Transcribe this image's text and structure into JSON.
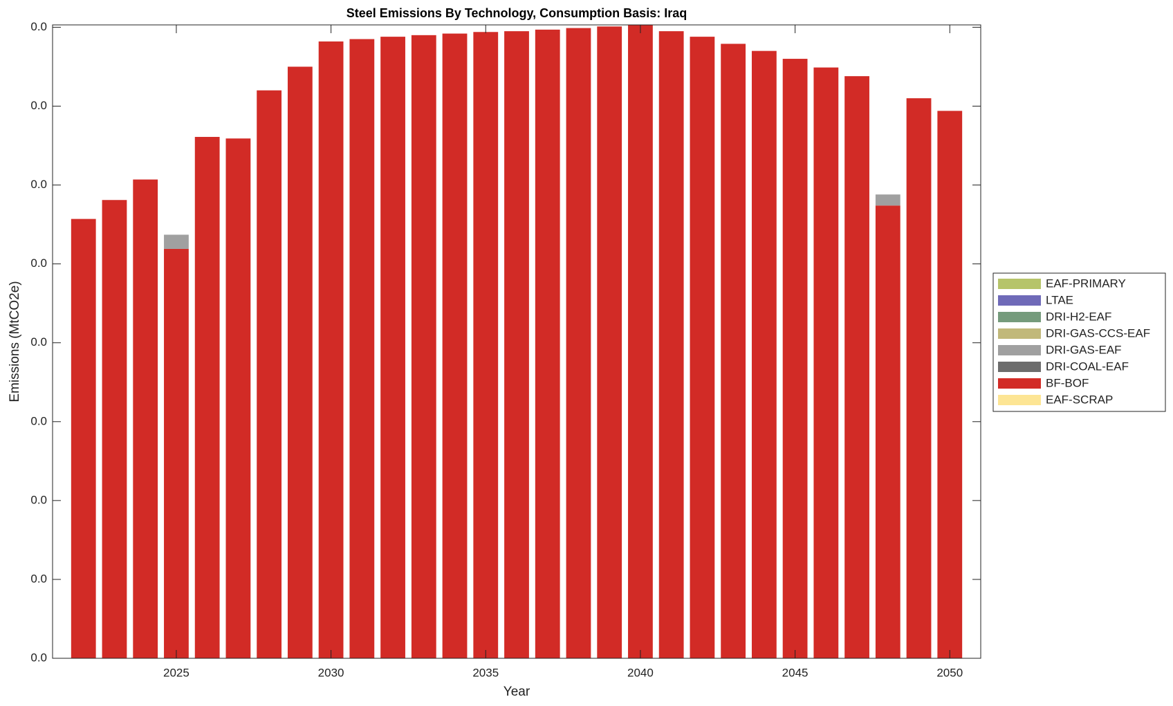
{
  "chart_data": {
    "type": "stacked_bar",
    "title": "Steel Emissions By Technology, Consumption Basis: Iraq",
    "x_label": "Year",
    "y_label": "Emissions (MtCO2e)",
    "x": [
      2022,
      2023,
      2024,
      2025,
      2026,
      2027,
      2028,
      2029,
      2030,
      2031,
      2032,
      2033,
      2034,
      2035,
      2036,
      2037,
      2038,
      2039,
      2040,
      2041,
      2042,
      2043,
      2044,
      2045,
      2046,
      2047,
      2048,
      2049,
      2050
    ],
    "xlim": [
      2021,
      2051
    ],
    "xticks": [
      2025,
      2030,
      2035,
      2040,
      2045,
      2050
    ],
    "ylim": [
      0,
      0.0803
    ],
    "yticks": [
      {
        "value": 0,
        "label": "0.0"
      },
      {
        "value": 0.01,
        "label": "0.0"
      },
      {
        "value": 0.02,
        "label": "0.0"
      },
      {
        "value": 0.03,
        "label": "0.0"
      },
      {
        "value": 0.04,
        "label": "0.0"
      },
      {
        "value": 0.05,
        "label": "0.0"
      },
      {
        "value": 0.06,
        "label": "0.0"
      },
      {
        "value": 0.07,
        "label": "0.0"
      },
      {
        "value": 0.08,
        "label": "0.0"
      }
    ],
    "legend": "right",
    "series": [
      {
        "name": "EAF-SCRAP",
        "color": "#fde594",
        "values": [
          0,
          0,
          0,
          0,
          0,
          0,
          0,
          0,
          0,
          0,
          0,
          0,
          0,
          0,
          0,
          0,
          0,
          0,
          0,
          0,
          0,
          0,
          0,
          0,
          0,
          0,
          0,
          0,
          0
        ]
      },
      {
        "name": "BF-BOF",
        "color": "#d22b26",
        "values": [
          0.0557,
          0.0581,
          0.0607,
          0.0519,
          0.0661,
          0.0659,
          0.072,
          0.075,
          0.0782,
          0.0785,
          0.0788,
          0.079,
          0.0792,
          0.0794,
          0.0795,
          0.0797,
          0.0799,
          0.0801,
          0.0803,
          0.0795,
          0.0788,
          0.0779,
          0.077,
          0.076,
          0.0749,
          0.0738,
          0.0574,
          0.071,
          0.0694
        ]
      },
      {
        "name": "DRI-COAL-EAF",
        "color": "#6c6c6c",
        "values": [
          0,
          0,
          0,
          0,
          0,
          0,
          0,
          0,
          0,
          0,
          0,
          0,
          0,
          0,
          0,
          0,
          0,
          0,
          0,
          0,
          0,
          0,
          0,
          0,
          0,
          0,
          0,
          0,
          0
        ]
      },
      {
        "name": "DRI-GAS-EAF",
        "color": "#a0a0a0",
        "values": [
          0,
          0,
          0,
          0.0018,
          0,
          0,
          0,
          0,
          0,
          0,
          0,
          0,
          0,
          0,
          0,
          0,
          0,
          0,
          0,
          0,
          0,
          0,
          0,
          0,
          0,
          0,
          0.0014,
          0,
          0
        ]
      },
      {
        "name": "DRI-GAS-CCS-EAF",
        "color": "#c1b87a",
        "values": [
          0,
          0,
          0,
          0,
          0,
          0,
          0,
          0,
          0,
          0,
          0,
          0,
          0,
          0,
          0,
          0,
          0,
          0,
          0,
          0,
          0,
          0,
          0,
          0,
          0,
          0,
          0,
          0,
          0
        ]
      },
      {
        "name": "DRI-H2-EAF",
        "color": "#759b7c",
        "values": [
          0,
          0,
          0,
          0,
          0,
          0,
          0,
          0,
          0,
          0,
          0,
          0,
          0,
          0,
          0,
          0,
          0,
          0,
          0,
          0,
          0,
          0,
          0,
          0,
          0,
          0,
          0,
          0,
          0
        ]
      },
      {
        "name": "LTAE",
        "color": "#6f6ab8",
        "values": [
          0,
          0,
          0,
          0,
          0,
          0,
          0,
          0,
          0,
          0,
          0,
          0,
          0,
          0,
          0,
          0,
          0,
          0,
          0,
          0,
          0,
          0,
          0,
          0,
          0,
          0,
          0,
          0,
          0
        ]
      },
      {
        "name": "EAF-PRIMARY",
        "color": "#b6c46a",
        "values": [
          0,
          0,
          0,
          0,
          0,
          0,
          0,
          0,
          0,
          0,
          0,
          0,
          0,
          0,
          0,
          0,
          0,
          0,
          0,
          0,
          0,
          0,
          0,
          0,
          0,
          0,
          0,
          0,
          0
        ]
      }
    ]
  }
}
